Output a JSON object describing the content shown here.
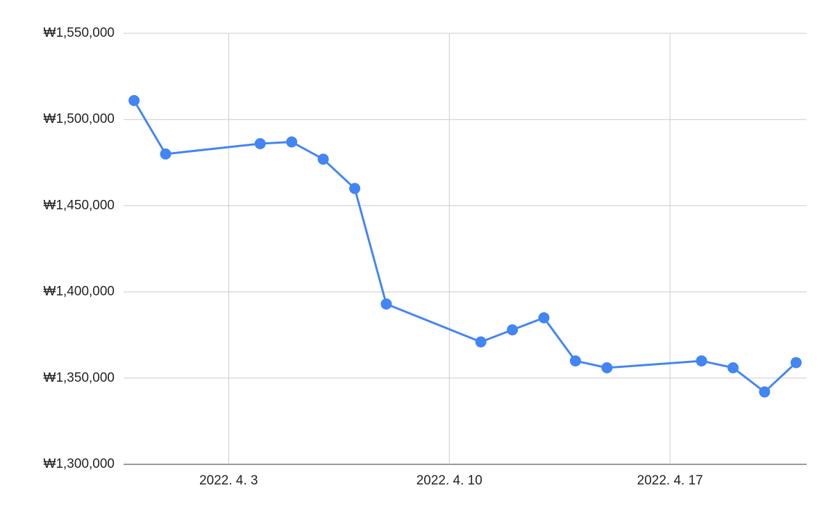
{
  "chart_data": {
    "type": "line",
    "x": [
      "2022-03-31",
      "2022-04-01",
      "2022-04-04",
      "2022-04-05",
      "2022-04-06",
      "2022-04-07",
      "2022-04-08",
      "2022-04-11",
      "2022-04-12",
      "2022-04-13",
      "2022-04-14",
      "2022-04-15",
      "2022-04-18",
      "2022-04-19",
      "2022-04-20",
      "2022-04-21"
    ],
    "values": [
      1511000,
      1480000,
      1486000,
      1487000,
      1477000,
      1460000,
      1393000,
      1371000,
      1378000,
      1385000,
      1360000,
      1356000,
      1360000,
      1356000,
      1342000,
      1359000
    ],
    "color": "#4285f4",
    "xlim": [
      "2022-03-30T16:00",
      "2022-04-21T08:00"
    ],
    "xticks": [
      {
        "value": "2022-04-03",
        "label": "2022. 4. 3"
      },
      {
        "value": "2022-04-10",
        "label": "2022. 4. 10"
      },
      {
        "value": "2022-04-17",
        "label": "2022. 4. 17"
      }
    ],
    "ylim": [
      1300000,
      1550000
    ],
    "yticks": [
      {
        "value": 1300000,
        "label": "₩1,300,000"
      },
      {
        "value": 1350000,
        "label": "₩1,350,000"
      },
      {
        "value": 1400000,
        "label": "₩1,400,000"
      },
      {
        "value": 1450000,
        "label": "₩1,450,000"
      },
      {
        "value": 1500000,
        "label": "₩1,500,000"
      },
      {
        "value": 1550000,
        "label": "₩1,550,000"
      }
    ],
    "grid": true
  }
}
